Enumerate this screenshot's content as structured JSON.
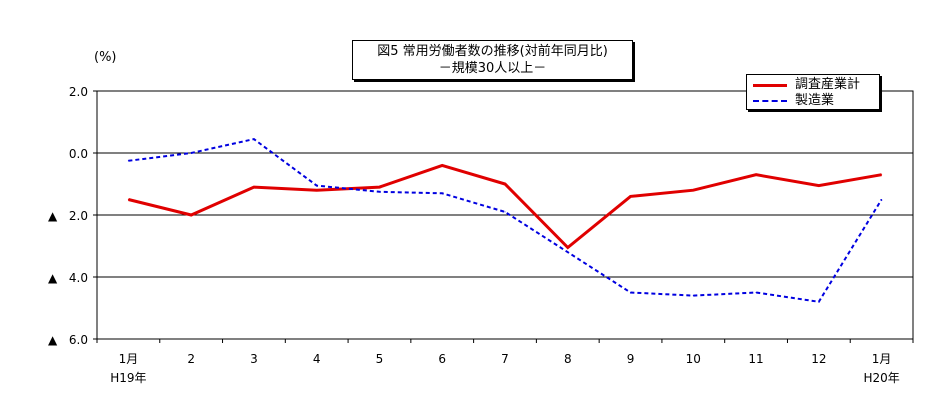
{
  "chart_data": {
    "type": "line",
    "title_line1": "図5 常用労働者数の推移(対前年同月比)",
    "title_line2": "－規模30人以上－",
    "unit": "(%)",
    "categories": [
      "1月",
      "2",
      "3",
      "4",
      "5",
      "6",
      "7",
      "8",
      "9",
      "10",
      "11",
      "12",
      "1月"
    ],
    "sub_categories": [
      "H19年",
      "",
      "",
      "",
      "",
      "",
      "",
      "",
      "",
      "",
      "",
      "",
      "H20年"
    ],
    "y_ticks": [
      {
        "value": 2.0,
        "label": "2.0",
        "neg": false
      },
      {
        "value": 0.0,
        "label": "0.0",
        "neg": false
      },
      {
        "value": -2.0,
        "label": "2.0",
        "neg": true
      },
      {
        "value": -4.0,
        "label": "4.0",
        "neg": true
      },
      {
        "value": -6.0,
        "label": "6.0",
        "neg": true
      }
    ],
    "neg_marker": "▲",
    "ylim": [
      -6,
      2
    ],
    "grid": true,
    "legend_position": "top-right",
    "series": [
      {
        "name": "調査産業計",
        "color": "#e00000",
        "style": "solid",
        "values": [
          -1.5,
          -2.0,
          -1.1,
          -1.2,
          -1.1,
          -0.4,
          -1.0,
          -3.05,
          -1.4,
          -1.2,
          -0.7,
          -1.05,
          -0.7
        ]
      },
      {
        "name": "製造業",
        "color": "#0000e0",
        "style": "dashed",
        "values": [
          -0.25,
          0.0,
          0.45,
          -1.05,
          -1.25,
          -1.3,
          -1.9,
          -3.2,
          -4.5,
          -4.6,
          -4.5,
          -4.8,
          -1.5
        ]
      }
    ]
  }
}
